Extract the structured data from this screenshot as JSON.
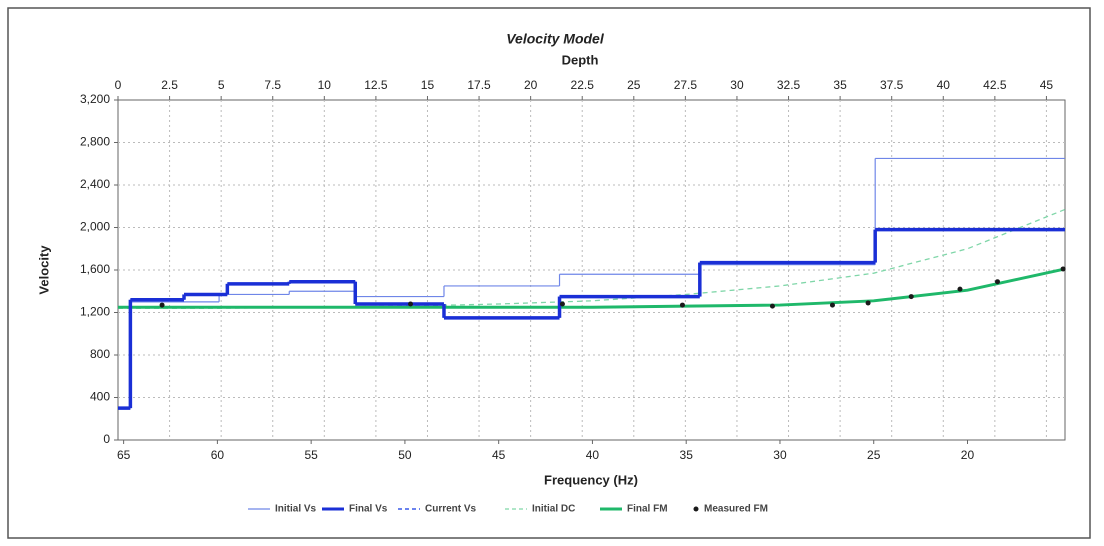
{
  "chart_data": {
    "type": "line",
    "title": "Velocity Model",
    "x2label": "Depth",
    "xlabel": "Frequency (Hz)",
    "ylabel": "Velocity",
    "x2lim": [
      0,
      45.9
    ],
    "x2ticks": [
      0,
      2.5,
      5,
      7.5,
      10,
      12.5,
      15,
      17.5,
      20,
      22.5,
      25,
      27.5,
      30,
      32.5,
      35,
      37.5,
      40,
      42.5,
      45
    ],
    "xlim": [
      65.3,
      14.8
    ],
    "xticks": [
      65,
      60,
      55,
      50,
      45,
      40,
      35,
      30,
      25,
      20
    ],
    "ylim": [
      0,
      3200
    ],
    "yticks": [
      0,
      400,
      800,
      {
        "value": 1200,
        "label": "1,200"
      },
      {
        "value": 1600,
        "label": "1,600"
      },
      {
        "value": 2000,
        "label": "2,000"
      },
      {
        "value": 2400,
        "label": "2,400"
      },
      {
        "value": 2800,
        "label": "2,800"
      },
      {
        "value": 3200,
        "label": "3,200"
      }
    ],
    "grid": true,
    "series": [
      {
        "name": "Initial Vs",
        "color": "#6f86e8",
        "width": 1.2,
        "axis": "x2",
        "step": true,
        "x": [
          0,
          0.6,
          4.9,
          8.3,
          11.5,
          15.8,
          21.4,
          28.2,
          36.7
        ],
        "values": [
          300,
          1300,
          1370,
          1400,
          1350,
          1450,
          1560,
          1650,
          2650
        ]
      },
      {
        "name": "Final Vs",
        "color": "#1a2fd6",
        "width": 3.5,
        "axis": "x2",
        "step": true,
        "x": [
          0,
          0.6,
          3.2,
          5.3,
          8.3,
          11.5,
          15.8,
          21.4,
          28.2,
          36.7
        ],
        "values": [
          300,
          1320,
          1370,
          1470,
          1490,
          1280,
          1150,
          1350,
          1670,
          1980
        ]
      },
      {
        "name": "Current Vs",
        "color": "#3a5ae8",
        "width": 1.5,
        "dash": true,
        "axis": "x2",
        "step": true,
        "x": [
          0,
          0.6,
          3.2,
          5.3,
          8.3,
          11.5,
          15.8,
          21.4,
          28.2,
          36.7
        ],
        "values": [
          300,
          1320,
          1370,
          1470,
          1490,
          1280,
          1150,
          1350,
          1670,
          1980
        ]
      },
      {
        "name": "Initial DC",
        "color": "#7fd6a8",
        "width": 1.3,
        "dash": true,
        "x": [
          65.3,
          60,
          55,
          50,
          45,
          40,
          35,
          30,
          25,
          20,
          14.8
        ],
        "values": [
          1240,
          1240,
          1250,
          1260,
          1280,
          1310,
          1370,
          1450,
          1570,
          1800,
          2170
        ]
      },
      {
        "name": "Final FM",
        "color": "#1fb86a",
        "width": 3,
        "x": [
          65.3,
          60,
          55,
          50,
          45,
          40,
          35,
          30,
          25,
          20,
          14.8
        ],
        "values": [
          1250,
          1250,
          1250,
          1250,
          1250,
          1250,
          1260,
          1270,
          1310,
          1410,
          1610
        ]
      },
      {
        "name": "Measured FM",
        "color": "#1a1a1a",
        "marker": "dot",
        "x": [
          62.95,
          49.7,
          41.6,
          35.2,
          30.4,
          27.2,
          25.3,
          23,
          20.4,
          18.4,
          14.9
        ],
        "values": [
          1270,
          1280,
          1280,
          1270,
          1260,
          1270,
          1290,
          1350,
          1420,
          1490,
          1610
        ]
      }
    ]
  }
}
